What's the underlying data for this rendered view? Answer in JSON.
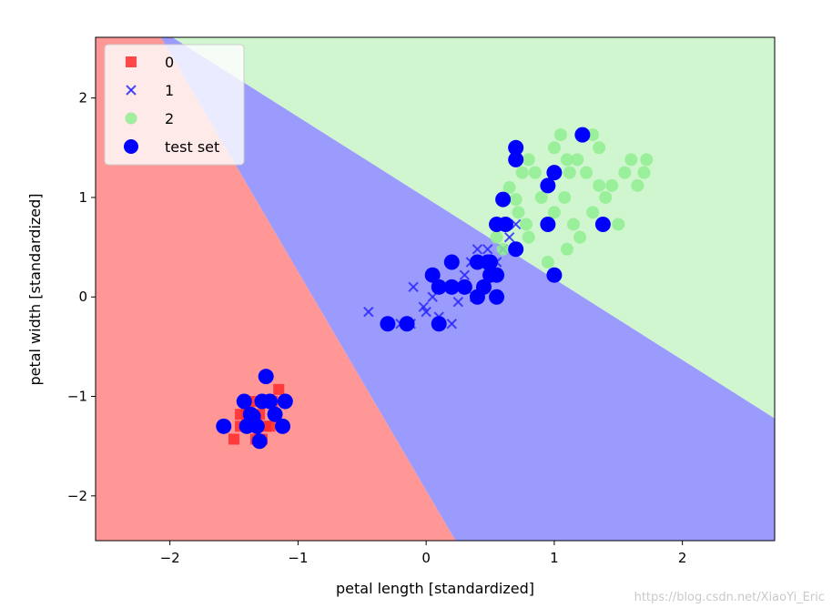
{
  "chart_data": {
    "type": "scatter",
    "xlabel": "petal length [standardized]",
    "ylabel": "petal width [standardized]",
    "xlim": [
      -2.58,
      2.72
    ],
    "ylim": [
      -2.45,
      2.61
    ],
    "xticks": [
      -2,
      -1,
      0,
      1,
      2
    ],
    "xtick_labels": [
      "−2",
      "−1",
      "0",
      "1",
      "2"
    ],
    "yticks": [
      -2,
      -1,
      0,
      1,
      2
    ],
    "ytick_labels": [
      "−2",
      "−1",
      "0",
      "1",
      "2"
    ],
    "grid": false,
    "legend_position": "top-left",
    "decision_regions": {
      "colors": {
        "0": "#ff9797",
        "1": "#9b9bfd",
        "2": "#cff6cf"
      },
      "boundary_0_1": [
        [
          -2.07,
          2.61
        ],
        [
          0.23,
          -2.45
        ]
      ],
      "boundary_1_2": [
        [
          -1.98,
          2.61
        ],
        [
          2.72,
          -1.22
        ]
      ]
    },
    "series": [
      {
        "name": "0",
        "marker": "square",
        "color": "#ff2a2a",
        "points": [
          [
            -1.5,
            -1.43
          ],
          [
            -1.45,
            -1.3
          ],
          [
            -1.4,
            -1.18
          ],
          [
            -1.35,
            -1.05
          ],
          [
            -1.3,
            -1.18
          ],
          [
            -1.25,
            -1.3
          ],
          [
            -1.2,
            -1.05
          ],
          [
            -1.15,
            -0.93
          ],
          [
            -1.28,
            -1.43
          ],
          [
            -1.22,
            -1.3
          ],
          [
            -1.4,
            -1.3
          ],
          [
            -1.33,
            -1.43
          ],
          [
            -1.18,
            -1.18
          ],
          [
            -1.45,
            -1.18
          ]
        ]
      },
      {
        "name": "1",
        "marker": "x",
        "color": "#2a2aff",
        "points": [
          [
            -0.45,
            -0.15
          ],
          [
            -0.2,
            -0.27
          ],
          [
            -0.12,
            -0.27
          ],
          [
            -0.1,
            0.1
          ],
          [
            0.0,
            -0.15
          ],
          [
            0.05,
            0.0
          ],
          [
            0.1,
            -0.2
          ],
          [
            0.15,
            0.1
          ],
          [
            0.25,
            -0.05
          ],
          [
            0.3,
            0.22
          ],
          [
            0.35,
            0.35
          ],
          [
            0.4,
            0.48
          ],
          [
            0.45,
            0.1
          ],
          [
            0.5,
            0.22
          ],
          [
            0.55,
            0.35
          ],
          [
            0.6,
            0.48
          ],
          [
            0.65,
            0.6
          ],
          [
            0.7,
            0.73
          ],
          [
            0.2,
            -0.27
          ],
          [
            0.38,
            0.0
          ],
          [
            0.48,
            0.48
          ],
          [
            -0.02,
            -0.1
          ]
        ]
      },
      {
        "name": "2",
        "marker": "circle",
        "color": "#90ee90",
        "points": [
          [
            0.55,
            0.6
          ],
          [
            0.65,
            1.1
          ],
          [
            0.75,
            1.25
          ],
          [
            0.8,
            1.38
          ],
          [
            0.85,
            1.25
          ],
          [
            0.9,
            1.0
          ],
          [
            0.95,
            1.12
          ],
          [
            1.0,
            1.5
          ],
          [
            1.05,
            1.63
          ],
          [
            1.1,
            1.38
          ],
          [
            1.12,
            1.25
          ],
          [
            1.15,
            0.73
          ],
          [
            1.2,
            0.6
          ],
          [
            1.25,
            1.25
          ],
          [
            1.3,
            1.63
          ],
          [
            1.35,
            1.5
          ],
          [
            1.4,
            1.0
          ],
          [
            1.45,
            1.12
          ],
          [
            1.5,
            0.73
          ],
          [
            1.55,
            1.25
          ],
          [
            1.6,
            1.38
          ],
          [
            1.65,
            1.12
          ],
          [
            1.7,
            1.25
          ],
          [
            1.72,
            1.38
          ],
          [
            0.7,
            0.98
          ],
          [
            0.72,
            0.85
          ],
          [
            0.8,
            0.6
          ],
          [
            0.95,
            0.35
          ],
          [
            1.0,
            0.85
          ],
          [
            1.1,
            0.48
          ],
          [
            1.3,
            0.85
          ],
          [
            0.6,
            0.48
          ],
          [
            0.78,
            0.73
          ],
          [
            1.08,
            1.0
          ],
          [
            1.18,
            1.38
          ],
          [
            1.35,
            1.12
          ]
        ]
      },
      {
        "name": "test set",
        "marker": "circle",
        "color": "#0000ff",
        "points": [
          [
            -1.58,
            -1.3
          ],
          [
            -1.42,
            -1.05
          ],
          [
            -1.4,
            -1.3
          ],
          [
            -1.37,
            -1.18
          ],
          [
            -1.32,
            -1.3
          ],
          [
            -1.3,
            -1.45
          ],
          [
            -1.28,
            -1.05
          ],
          [
            -1.25,
            -0.8
          ],
          [
            -1.22,
            -1.05
          ],
          [
            -1.18,
            -1.18
          ],
          [
            -1.12,
            -1.3
          ],
          [
            -1.1,
            -1.05
          ],
          [
            -1.35,
            -1.2
          ],
          [
            -0.3,
            -0.27
          ],
          [
            -0.15,
            -0.27
          ],
          [
            0.05,
            0.22
          ],
          [
            0.1,
            0.1
          ],
          [
            0.1,
            -0.27
          ],
          [
            0.2,
            0.1
          ],
          [
            0.2,
            0.35
          ],
          [
            0.3,
            0.1
          ],
          [
            0.4,
            0.0
          ],
          [
            0.4,
            0.35
          ],
          [
            0.45,
            0.1
          ],
          [
            0.5,
            0.22
          ],
          [
            0.5,
            0.35
          ],
          [
            0.55,
            0.0
          ],
          [
            0.55,
            0.22
          ],
          [
            0.55,
            0.73
          ],
          [
            0.6,
            0.98
          ],
          [
            0.62,
            0.73
          ],
          [
            0.7,
            1.38
          ],
          [
            0.7,
            1.5
          ],
          [
            0.7,
            0.48
          ],
          [
            0.95,
            0.73
          ],
          [
            0.95,
            1.12
          ],
          [
            1.0,
            1.25
          ],
          [
            1.0,
            0.22
          ],
          [
            1.22,
            1.63
          ],
          [
            1.38,
            0.73
          ],
          [
            0.48,
            0.35
          ]
        ]
      }
    ]
  },
  "watermark": "https://blog.csdn.net/XiaoYi_Eric"
}
